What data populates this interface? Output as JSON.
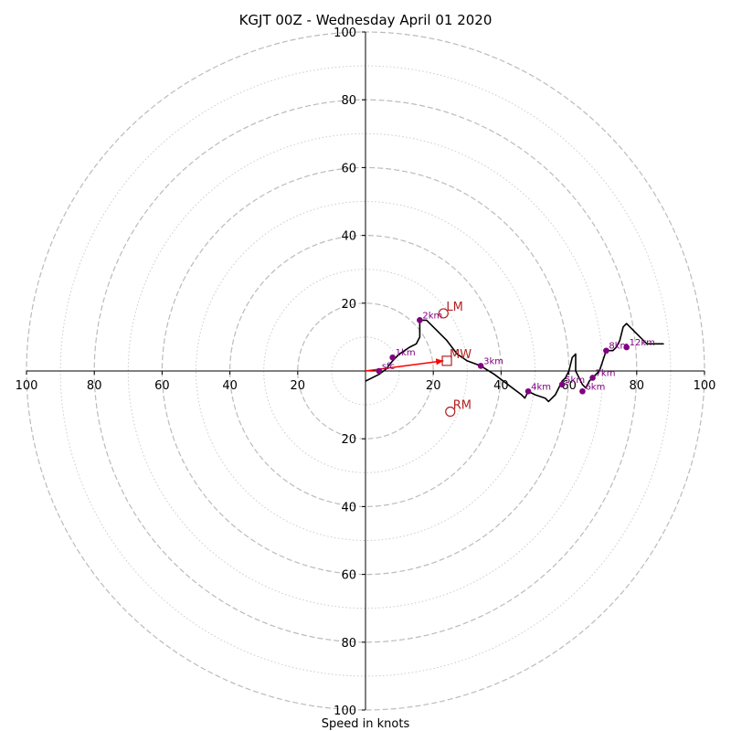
{
  "colors": {
    "hodograph": "#000000",
    "height_marker": "#800080",
    "motion_marker": "#b22222",
    "shear_vector": "#ff0000",
    "grid_major": "#bbbbbb",
    "grid_minor": "#cccccc",
    "axes": "#000000"
  },
  "chart_data": {
    "type": "scatter",
    "subtype": "hodograph",
    "title": "KGJT 00Z - Wednesday April 01 2020",
    "xlabel": "Speed in knots",
    "ylabel": "",
    "xlim": [
      -100,
      100
    ],
    "ylim": [
      -100,
      100
    ],
    "grid": true,
    "major_rings": [
      20,
      40,
      60,
      80,
      100
    ],
    "minor_rings": [
      10,
      30,
      50,
      70,
      90
    ],
    "x_tick_labels": [
      "100",
      "80",
      "60",
      "40",
      "20",
      "",
      "20",
      "40",
      "60",
      "80",
      "100"
    ],
    "x_tick_values": [
      -100,
      -80,
      -60,
      -40,
      -20,
      0,
      20,
      40,
      60,
      80,
      100
    ],
    "y_tick_labels": [
      "100",
      "80",
      "60",
      "40",
      "20",
      "20",
      "40",
      "60",
      "80",
      "100"
    ],
    "y_tick_values": [
      100,
      80,
      60,
      40,
      20,
      -20,
      -40,
      -60,
      -80,
      -100
    ],
    "trace": [
      [
        0,
        -3
      ],
      [
        4,
        -1
      ],
      [
        6,
        0.5
      ],
      [
        8,
        3
      ],
      [
        10,
        5
      ],
      [
        13,
        7
      ],
      [
        15,
        8
      ],
      [
        16,
        10
      ],
      [
        16,
        15
      ],
      [
        18,
        15
      ],
      [
        20,
        13
      ],
      [
        22,
        11
      ],
      [
        24,
        9
      ],
      [
        27,
        5
      ],
      [
        30,
        3
      ],
      [
        34,
        1.5
      ],
      [
        38,
        -1
      ],
      [
        42,
        -4
      ],
      [
        46,
        -7
      ],
      [
        47,
        -8
      ],
      [
        48,
        -6
      ],
      [
        50,
        -7
      ],
      [
        53,
        -8
      ],
      [
        54,
        -9
      ],
      [
        56,
        -7
      ],
      [
        58,
        -3
      ],
      [
        59,
        -2
      ],
      [
        60,
        0
      ],
      [
        61,
        4
      ],
      [
        62,
        5
      ],
      [
        62,
        0
      ],
      [
        63,
        -2
      ],
      [
        64,
        -4
      ],
      [
        65,
        -5
      ],
      [
        66,
        -3
      ],
      [
        67,
        -2
      ],
      [
        69,
        0
      ],
      [
        70,
        3
      ],
      [
        71,
        6
      ],
      [
        73,
        6
      ],
      [
        74,
        7
      ],
      [
        75,
        9
      ],
      [
        76,
        13
      ],
      [
        77,
        14
      ],
      [
        78,
        13
      ],
      [
        80,
        11
      ],
      [
        83,
        8
      ],
      [
        88,
        8
      ]
    ],
    "height_points": [
      {
        "label": "sfc",
        "u": 4,
        "v": 0
      },
      {
        "label": "1km",
        "u": 8,
        "v": 4
      },
      {
        "label": "2km",
        "u": 16,
        "v": 15
      },
      {
        "label": "3km",
        "u": 34,
        "v": 1.5
      },
      {
        "label": "4km",
        "u": 48,
        "v": -6
      },
      {
        "label": "5km",
        "u": 58,
        "v": -4
      },
      {
        "label": "6km",
        "u": 64,
        "v": -6
      },
      {
        "label": "7km",
        "u": 67,
        "v": -2
      },
      {
        "label": "8km",
        "u": 71,
        "v": 6
      },
      {
        "label": "12km",
        "u": 77,
        "v": 7
      }
    ],
    "storm_motion": [
      {
        "label": "LM",
        "u": 23,
        "v": 17,
        "marker": "circle"
      },
      {
        "label": "MW",
        "u": 24,
        "v": 3,
        "marker": "square"
      },
      {
        "label": "RM",
        "u": 25,
        "v": -12,
        "marker": "circle"
      }
    ],
    "shear_vector": {
      "from": [
        0,
        0
      ],
      "to": [
        23,
        3
      ]
    }
  }
}
